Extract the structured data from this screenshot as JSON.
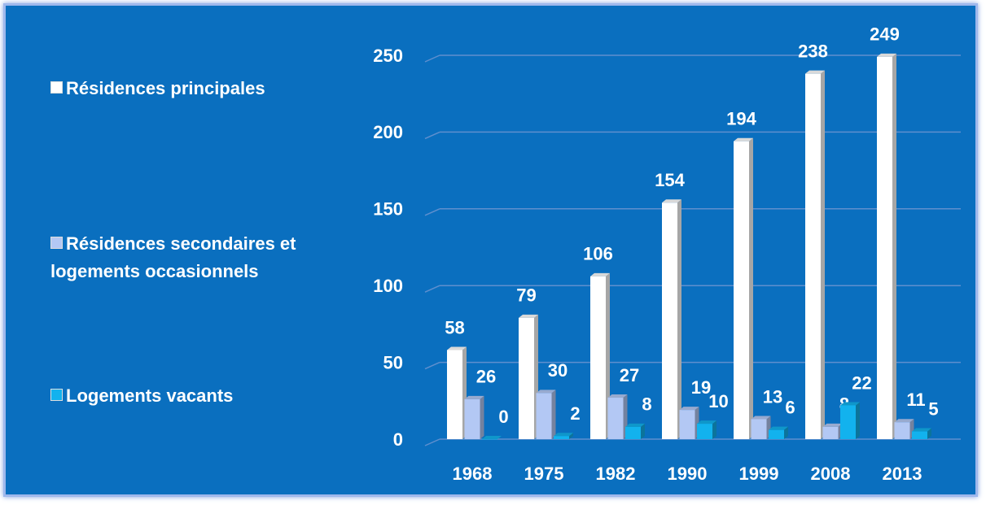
{
  "chart_data": {
    "type": "bar",
    "categories": [
      "1968",
      "1975",
      "1982",
      "1990",
      "1999",
      "2008",
      "2013"
    ],
    "series": [
      {
        "name": "Résidences principales",
        "color": "#ffffff",
        "values": [
          58,
          79,
          106,
          154,
          194,
          238,
          249
        ]
      },
      {
        "name": "Résidences secondaires et logements occasionnels",
        "color": "#b3c8f4",
        "values": [
          26,
          30,
          27,
          19,
          13,
          8,
          11
        ]
      },
      {
        "name": "Logements vacants",
        "color": "#12b2ee",
        "values": [
          0,
          2,
          8,
          10,
          6,
          22,
          5
        ]
      }
    ],
    "ylim": [
      0,
      250
    ],
    "yticks": [
      0,
      50,
      100,
      150,
      200,
      250
    ],
    "grid": true,
    "legend": "left"
  }
}
